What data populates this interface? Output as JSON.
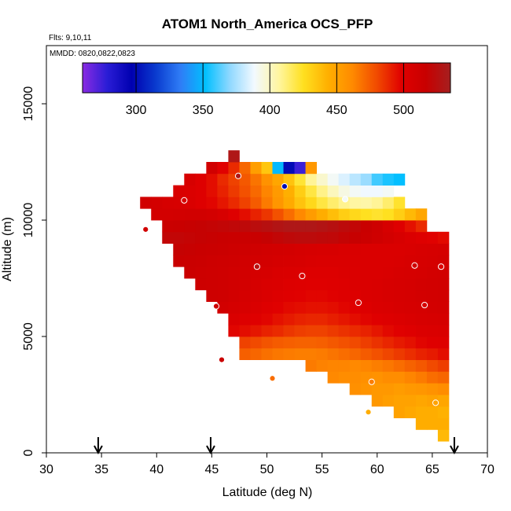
{
  "chart_data": {
    "type": "heatmap",
    "title": "ATOM1 North_America OCS_PFP",
    "flights_label": "Flts: 9,10,11",
    "dates_label": "MMDD: 0820,0822,0823",
    "xlabel": "Latitude (deg N)",
    "ylabel": "Altitude (m)",
    "xlim": [
      30,
      70
    ],
    "ylim": [
      0,
      17500
    ],
    "x_ticks": [
      30,
      35,
      40,
      45,
      50,
      55,
      60,
      65,
      70
    ],
    "y_ticks": [
      0,
      5000,
      10000,
      15000
    ],
    "colorbar": {
      "min": 260,
      "max": 535,
      "ticks": [
        300,
        350,
        400,
        450,
        500
      ],
      "colors": [
        "#8a2be2",
        "#2a1dd6",
        "#0000b0",
        "#0a3ccf",
        "#2f7df6",
        "#00bfff",
        "#8fd8ff",
        "#f2f9ff",
        "#fff6a0",
        "#ffe020",
        "#ffb000",
        "#ff8a00",
        "#f14a00",
        "#e00000",
        "#c80000",
        "#a52020"
      ]
    },
    "grid": {
      "lat_start": 38.5,
      "lat_step": 1.0,
      "alt_start": 500,
      "alt_step": 500,
      "ocs": [
        [
          null,
          null,
          null,
          null,
          null,
          null,
          null,
          null,
          null,
          null,
          null,
          null,
          null,
          null,
          null,
          null,
          null,
          null,
          null,
          null,
          null,
          null,
          null,
          null,
          null,
          null,
          null,
          440
        ],
        [
          null,
          null,
          null,
          null,
          null,
          null,
          null,
          null,
          null,
          null,
          null,
          null,
          null,
          null,
          null,
          null,
          null,
          null,
          null,
          null,
          null,
          null,
          null,
          null,
          null,
          445,
          445,
          445
        ],
        [
          null,
          null,
          null,
          null,
          null,
          null,
          null,
          null,
          null,
          null,
          null,
          null,
          null,
          null,
          null,
          null,
          null,
          null,
          null,
          null,
          null,
          null,
          null,
          450,
          447,
          445,
          445,
          443
        ],
        [
          null,
          null,
          null,
          null,
          null,
          null,
          null,
          null,
          null,
          null,
          null,
          null,
          null,
          null,
          null,
          null,
          null,
          null,
          null,
          null,
          null,
          455,
          452,
          450,
          450,
          448,
          450,
          448
        ],
        [
          null,
          null,
          null,
          null,
          null,
          null,
          null,
          null,
          null,
          null,
          null,
          null,
          null,
          null,
          null,
          null,
          null,
          null,
          null,
          459,
          457,
          455,
          455,
          453,
          455,
          456,
          458,
          460
        ],
        [
          null,
          null,
          null,
          null,
          null,
          null,
          null,
          null,
          null,
          null,
          null,
          null,
          null,
          null,
          null,
          null,
          null,
          462,
          460,
          460,
          459,
          458,
          460,
          460,
          463,
          466,
          470,
          472
        ],
        [
          null,
          null,
          null,
          null,
          null,
          null,
          null,
          null,
          null,
          null,
          null,
          null,
          null,
          null,
          null,
          466,
          464,
          463,
          463,
          462,
          463,
          465,
          467,
          470,
          473,
          476,
          480,
          483
        ],
        [
          null,
          null,
          null,
          null,
          null,
          null,
          null,
          null,
          null,
          474,
          472,
          469,
          467,
          466,
          465,
          465,
          466,
          468,
          470,
          472,
          475,
          478,
          481,
          484,
          487,
          490,
          492,
          495
        ],
        [
          null,
          null,
          null,
          null,
          null,
          null,
          null,
          null,
          null,
          482,
          480,
          477,
          475,
          474,
          473,
          473,
          474,
          476,
          478,
          480,
          483,
          486,
          489,
          492,
          494,
          497,
          499,
          500
        ],
        [
          null,
          null,
          null,
          null,
          null,
          null,
          null,
          null,
          497,
          495,
          493,
          490,
          488,
          485,
          483,
          482,
          482,
          484,
          486,
          488,
          490,
          493,
          496,
          498,
          500,
          502,
          503,
          504
        ],
        [
          null,
          null,
          null,
          null,
          null,
          null,
          null,
          null,
          503,
          501,
          499,
          497,
          494,
          492,
          490,
          489,
          489,
          491,
          493,
          495,
          497,
          499,
          501,
          502,
          504,
          505,
          506,
          507
        ],
        [
          null,
          null,
          null,
          null,
          null,
          null,
          null,
          509,
          507,
          505,
          503,
          500,
          498,
          496,
          495,
          494,
          494,
          495,
          497,
          499,
          501,
          503,
          504,
          505,
          506,
          507,
          508,
          509
        ],
        [
          null,
          null,
          null,
          null,
          null,
          null,
          512,
          511,
          509,
          507,
          505,
          503,
          501,
          499,
          498,
          497,
          497,
          498,
          500,
          501,
          503,
          504,
          505,
          506,
          507,
          508,
          509,
          510
        ],
        [
          null,
          null,
          null,
          null,
          null,
          513,
          512,
          511,
          510,
          508,
          506,
          504,
          503,
          501,
          500,
          499,
          499,
          500,
          501,
          502,
          503,
          504,
          505,
          506,
          507,
          508,
          509,
          510
        ],
        [
          null,
          null,
          null,
          null,
          514,
          513,
          512,
          511,
          510,
          509,
          507,
          506,
          504,
          503,
          502,
          501,
          501,
          501,
          502,
          502,
          503,
          503,
          504,
          505,
          506,
          507,
          508,
          509
        ],
        [
          null,
          null,
          null,
          516,
          515,
          514,
          513,
          512,
          511,
          510,
          509,
          508,
          507,
          506,
          505,
          504,
          503,
          503,
          503,
          503,
          503,
          503,
          503,
          504,
          505,
          506,
          507,
          508
        ],
        [
          null,
          null,
          null,
          518,
          517,
          516,
          515,
          514,
          513,
          512,
          511,
          510,
          509,
          508,
          507,
          506,
          505,
          505,
          504,
          504,
          503,
          503,
          503,
          503,
          504,
          505,
          506,
          507
        ],
        [
          null,
          null,
          520,
          520,
          519,
          518,
          517,
          516,
          515,
          515,
          516,
          518,
          520,
          522,
          523,
          523,
          522,
          521,
          519,
          517,
          514,
          511,
          508,
          505,
          502,
          500,
          498,
          496
        ],
        [
          null,
          null,
          515,
          516,
          517,
          518,
          519,
          520,
          521,
          522,
          524,
          526,
          528,
          530,
          530,
          530,
          528,
          526,
          523,
          520,
          516,
          512,
          506,
          500,
          494,
          488,
          null,
          null
        ],
        [
          null,
          508,
          508,
          509,
          510,
          510,
          508,
          505,
          500,
          495,
          490,
          485,
          478,
          470,
          462,
          453,
          445,
          438,
          432,
          428,
          425,
          423,
          425,
          432,
          440,
          448,
          null,
          null
        ],
        [
          510,
          508,
          506,
          505,
          503,
          500,
          497,
          493,
          488,
          482,
          475,
          466,
          456,
          446,
          436,
          428,
          420,
          414,
          409,
          406,
          405,
          408,
          414,
          423,
          null,
          null,
          null,
          null
        ],
        [
          null,
          null,
          null,
          504,
          502,
          500,
          495,
          490,
          484,
          478,
          471,
          463,
          454,
          444,
          432,
          420,
          410,
          401,
          394,
          390,
          388,
          388,
          390,
          null,
          null,
          null,
          null,
          null
        ],
        [
          null,
          null,
          null,
          null,
          505,
          500,
          495,
          488,
          482,
          476,
          468,
          458,
          448,
          436,
          422,
          408,
          398,
          390,
          384,
          378,
          372,
          360,
          355,
          352,
          null,
          null,
          null,
          null
        ],
        [
          null,
          null,
          null,
          null,
          null,
          null,
          510,
          498,
          488,
          472,
          452,
          435,
          350,
          300,
          275,
          455,
          null,
          null,
          null,
          null,
          null,
          null,
          null,
          null,
          null,
          null,
          null,
          null
        ],
        [
          null,
          null,
          null,
          null,
          null,
          null,
          null,
          null,
          530,
          null,
          null,
          null,
          null,
          null,
          null,
          null,
          null,
          null,
          null,
          null,
          null,
          null,
          null,
          null,
          null,
          null,
          null,
          null
        ]
      ]
    },
    "samples": [
      {
        "lat": 47.4,
        "alt": 11900,
        "ocs": 530
      },
      {
        "lat": 51.6,
        "alt": 11450,
        "ocs": 300
      },
      {
        "lat": 57.1,
        "alt": 10900,
        "ocs": 390
      },
      {
        "lat": 42.5,
        "alt": 10850,
        "ocs": 505
      },
      {
        "lat": 39.0,
        "alt": 9600,
        "ocs": 510
      },
      {
        "lat": 49.1,
        "alt": 8000,
        "ocs": 525
      },
      {
        "lat": 63.4,
        "alt": 8050,
        "ocs": 510
      },
      {
        "lat": 65.8,
        "alt": 8000,
        "ocs": 500
      },
      {
        "lat": 53.2,
        "alt": 7600,
        "ocs": 505
      },
      {
        "lat": 58.3,
        "alt": 6450,
        "ocs": 505
      },
      {
        "lat": 64.3,
        "alt": 6350,
        "ocs": 505
      },
      {
        "lat": 45.4,
        "alt": 6300,
        "ocs": 512
      },
      {
        "lat": 45.9,
        "alt": 4000,
        "ocs": 515
      },
      {
        "lat": 50.5,
        "alt": 3200,
        "ocs": 470
      },
      {
        "lat": 59.5,
        "alt": 3050,
        "ocs": 465
      },
      {
        "lat": 65.3,
        "alt": 2150,
        "ocs": 450
      },
      {
        "lat": 59.2,
        "alt": 1750,
        "ocs": 445
      }
    ],
    "arrows": [
      34.7,
      44.9,
      67.0
    ]
  }
}
